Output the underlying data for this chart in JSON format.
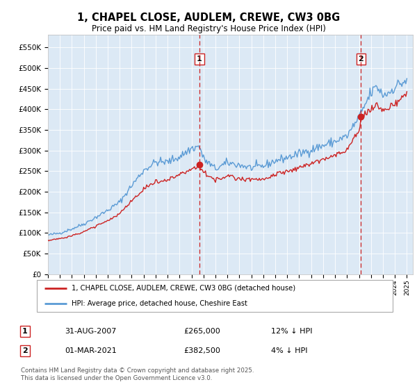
{
  "title_line1": "1, CHAPEL CLOSE, AUDLEM, CREWE, CW3 0BG",
  "title_line2": "Price paid vs. HM Land Registry's House Price Index (HPI)",
  "background_color": "#dce9f5",
  "plot_bg_color": "#dce9f5",
  "sale1_date": "31-AUG-2007",
  "sale1_price": 265000,
  "sale1_label": "1",
  "sale1_hpi_diff": "12% ↓ HPI",
  "sale2_date": "01-MAR-2021",
  "sale2_price": 382500,
  "sale2_label": "2",
  "sale2_hpi_diff": "4% ↓ HPI",
  "legend_line1": "1, CHAPEL CLOSE, AUDLEM, CREWE, CW3 0BG (detached house)",
  "legend_line2": "HPI: Average price, detached house, Cheshire East",
  "footer": "Contains HM Land Registry data © Crown copyright and database right 2025.\nThis data is licensed under the Open Government Licence v3.0.",
  "hpi_color": "#5b9bd5",
  "price_color": "#cc2222",
  "vline_color": "#cc2222",
  "marker_color": "#cc2222",
  "ylim_min": 0,
  "ylim_max": 580000,
  "yticks": [
    0,
    50000,
    100000,
    150000,
    200000,
    250000,
    300000,
    350000,
    400000,
    450000,
    500000,
    550000
  ],
  "hpi_keypoints_x": [
    1995.0,
    1996.0,
    1997.0,
    1998.0,
    1999.0,
    2000.0,
    2001.0,
    2002.0,
    2003.0,
    2004.0,
    2005.0,
    2006.0,
    2007.0,
    2007.67,
    2008.0,
    2009.0,
    2010.0,
    2011.0,
    2012.0,
    2013.0,
    2014.0,
    2015.0,
    2016.0,
    2017.0,
    2018.0,
    2019.0,
    2020.0,
    2021.0,
    2021.25,
    2022.0,
    2022.5,
    2023.0,
    2023.5,
    2024.0,
    2025.0
  ],
  "hpi_keypoints_y": [
    95000,
    100000,
    110000,
    122000,
    138000,
    155000,
    175000,
    215000,
    252000,
    272000,
    272000,
    285000,
    305000,
    310000,
    280000,
    255000,
    270000,
    265000,
    258000,
    262000,
    275000,
    283000,
    292000,
    302000,
    312000,
    322000,
    335000,
    380000,
    395000,
    440000,
    455000,
    435000,
    440000,
    455000,
    470000
  ],
  "prop_keypoints_x": [
    1995.0,
    1996.0,
    1997.0,
    1998.0,
    1999.0,
    2000.0,
    2001.0,
    2002.0,
    2003.0,
    2004.0,
    2005.0,
    2006.0,
    2007.0,
    2007.67,
    2008.0,
    2009.0,
    2010.0,
    2011.0,
    2012.0,
    2013.0,
    2014.0,
    2015.0,
    2016.0,
    2017.0,
    2018.0,
    2019.0,
    2020.0,
    2021.0,
    2021.25,
    2022.0,
    2022.5,
    2023.0,
    2023.5,
    2024.0,
    2025.0
  ],
  "prop_keypoints_y": [
    82000,
    86000,
    93000,
    103000,
    116000,
    130000,
    147000,
    178000,
    205000,
    225000,
    228000,
    242000,
    255000,
    265000,
    248000,
    228000,
    238000,
    232000,
    228000,
    232000,
    242000,
    250000,
    258000,
    268000,
    278000,
    288000,
    300000,
    350000,
    382500,
    400000,
    410000,
    395000,
    400000,
    415000,
    435000
  ]
}
